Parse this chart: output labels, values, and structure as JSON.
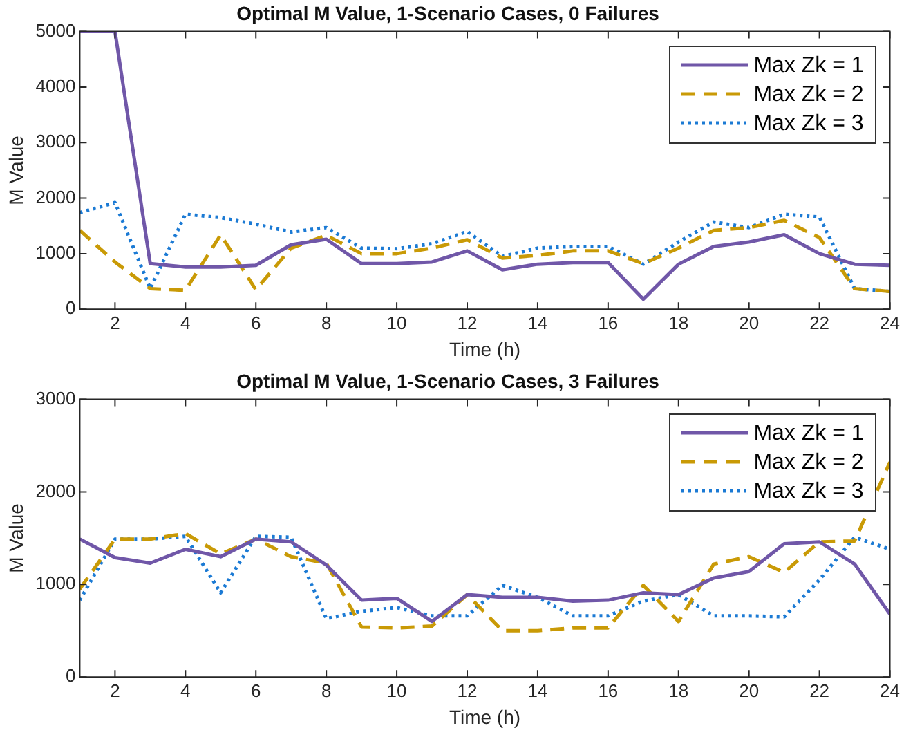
{
  "chart_data": [
    {
      "type": "line",
      "title": "Optimal M Value, 1-Scenario Cases, 0 Failures",
      "xlabel": "Time (h)",
      "ylabel": "M Value",
      "x": [
        1,
        2,
        3,
        4,
        5,
        6,
        7,
        8,
        9,
        10,
        11,
        12,
        13,
        14,
        15,
        16,
        17,
        18,
        19,
        20,
        21,
        22,
        23,
        24
      ],
      "xlim": [
        1,
        24
      ],
      "xticks": [
        2,
        4,
        6,
        8,
        10,
        12,
        14,
        16,
        18,
        20,
        22,
        24
      ],
      "ylim": [
        0,
        5000
      ],
      "yticks": [
        0,
        1000,
        2000,
        3000,
        4000,
        5000
      ],
      "grid": false,
      "legend": "top right",
      "marker": "none",
      "series": [
        {
          "name": "Max Zk = 1",
          "color": "#7057a8",
          "line_style": "solid",
          "values": [
            5000,
            5000,
            820,
            760,
            760,
            790,
            1160,
            1260,
            820,
            820,
            850,
            1050,
            710,
            810,
            840,
            840,
            180,
            810,
            1130,
            1210,
            1340,
            1000,
            810,
            790
          ]
        },
        {
          "name": "Max Zk = 2",
          "color": "#c99a06",
          "line_style": "dashed",
          "values": [
            1420,
            850,
            370,
            340,
            1340,
            350,
            1100,
            1330,
            1000,
            1000,
            1100,
            1250,
            920,
            970,
            1050,
            1050,
            820,
            1100,
            1420,
            1470,
            1600,
            1290,
            370,
            320
          ]
        },
        {
          "name": "Max Zk = 3",
          "color": "#1b7ad4",
          "line_style": "dotted",
          "values": [
            1740,
            1920,
            370,
            1710,
            1650,
            1530,
            1390,
            1470,
            1100,
            1090,
            1180,
            1400,
            950,
            1100,
            1130,
            1130,
            810,
            1210,
            1570,
            1470,
            1710,
            1660,
            370,
            320
          ]
        }
      ]
    },
    {
      "type": "line",
      "title": "Optimal M Value, 1-Scenario Cases, 3 Failures",
      "xlabel": "Time (h)",
      "ylabel": "M Value",
      "x": [
        1,
        2,
        3,
        4,
        5,
        6,
        7,
        8,
        9,
        10,
        11,
        12,
        13,
        14,
        15,
        16,
        17,
        18,
        19,
        20,
        21,
        22,
        23,
        24
      ],
      "xlim": [
        1,
        24
      ],
      "xticks": [
        2,
        4,
        6,
        8,
        10,
        12,
        14,
        16,
        18,
        20,
        22,
        24
      ],
      "ylim": [
        0,
        3000
      ],
      "yticks": [
        0,
        1000,
        2000,
        3000
      ],
      "grid": false,
      "legend": "top right",
      "marker": "none",
      "series": [
        {
          "name": "Max Zk = 1",
          "color": "#7057a8",
          "line_style": "solid",
          "values": [
            1490,
            1290,
            1230,
            1380,
            1300,
            1490,
            1460,
            1210,
            830,
            850,
            600,
            890,
            860,
            860,
            820,
            830,
            910,
            890,
            1070,
            1140,
            1440,
            1460,
            1220,
            680
          ]
        },
        {
          "name": "Max Zk = 2",
          "color": "#c99a06",
          "line_style": "dashed",
          "values": [
            950,
            1490,
            1490,
            1550,
            1330,
            1490,
            1300,
            1230,
            540,
            530,
            550,
            890,
            500,
            500,
            530,
            530,
            990,
            600,
            1220,
            1300,
            1130,
            1460,
            1470,
            2320
          ]
        },
        {
          "name": "Max Zk = 3",
          "color": "#1b7ad4",
          "line_style": "dotted",
          "values": [
            830,
            1490,
            1490,
            1520,
            910,
            1520,
            1510,
            630,
            710,
            750,
            660,
            660,
            990,
            860,
            660,
            660,
            820,
            890,
            660,
            660,
            650,
            1050,
            1510,
            1380
          ]
        }
      ]
    }
  ]
}
